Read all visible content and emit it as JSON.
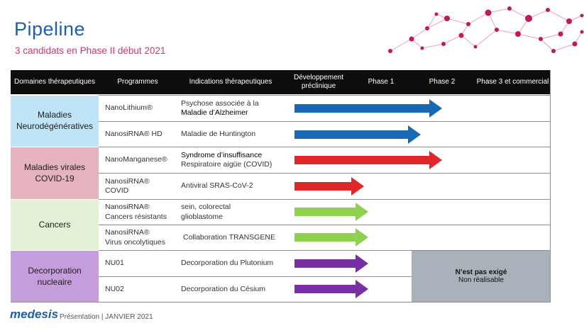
{
  "header": {
    "title": "Pipeline",
    "subtitle": "3 candidats en Phase II début 2021"
  },
  "table": {
    "columns": [
      "Domaines thérapeutiques",
      "Programmes",
      "Indications thérapeutiques",
      "Développement préclinique",
      "Phase 1",
      "Phase 2",
      "Phase 3 et commercial"
    ],
    "domains": [
      {
        "label": "Maladies Neurodégénératives",
        "color": "#bfe4f6"
      },
      {
        "label": "Maladies virales COVID-19",
        "color": "#e5b3bd"
      },
      {
        "label": "Cancers",
        "color": "#e3f1d6"
      },
      {
        "label": "Decorporation nucleaire",
        "color": "#c49ddb"
      }
    ],
    "rows": [
      {
        "program": [
          "NanoLithium®"
        ],
        "indication": [
          "Psychose associée à la",
          "Maladie d’Alzheimer"
        ],
        "stage": "Phase 2",
        "arrow_color": "#1769b2"
      },
      {
        "program": [
          "NanosiRNA® HD"
        ],
        "indication": [
          "Maladie de Huntington"
        ],
        "stage": "Phase 1/2",
        "arrow_color": "#1769b2"
      },
      {
        "program": [
          "NanoManganese®"
        ],
        "indication": [
          "Syndrome d’insuffisance",
          "Respiratoire aigüe (COVID)"
        ],
        "stage": "Phase 2",
        "arrow_color": "#e0262b"
      },
      {
        "program": [
          "NanosiRNA®",
          "COVID"
        ],
        "indication": [
          "Antiviral SRAS-CoV-2"
        ],
        "stage": "Préclinique",
        "arrow_color": "#e0262b"
      },
      {
        "program": [
          "NanosiRNA®",
          "Cancers résistants"
        ],
        "indication": [
          "sein, colorectal",
          "glioblastome"
        ],
        "stage": "Préclinique",
        "arrow_color": "#8fd14f"
      },
      {
        "program": [
          "NanosiRNA®",
          "Virus oncolytiques"
        ],
        "indication": [
          "Collaboration TRANSGENE"
        ],
        "stage": "Préclinique",
        "arrow_color": "#8fd14f"
      },
      {
        "program": [
          "NU01"
        ],
        "indication": [
          "Decorporation du Plutonium"
        ],
        "stage": "Préclinique",
        "arrow_color": "#7a2ea5"
      },
      {
        "program": [
          "NU02"
        ],
        "indication": [
          "Decorporation du Césium"
        ],
        "stage": "Préclinique",
        "arrow_color": "#7a2ea5"
      }
    ],
    "note": {
      "line1": "N’est pas exigé",
      "line2": "Non réalisable"
    }
  },
  "footer": {
    "logo": "medesis",
    "text": "Présentation | JANVIER 2021"
  }
}
